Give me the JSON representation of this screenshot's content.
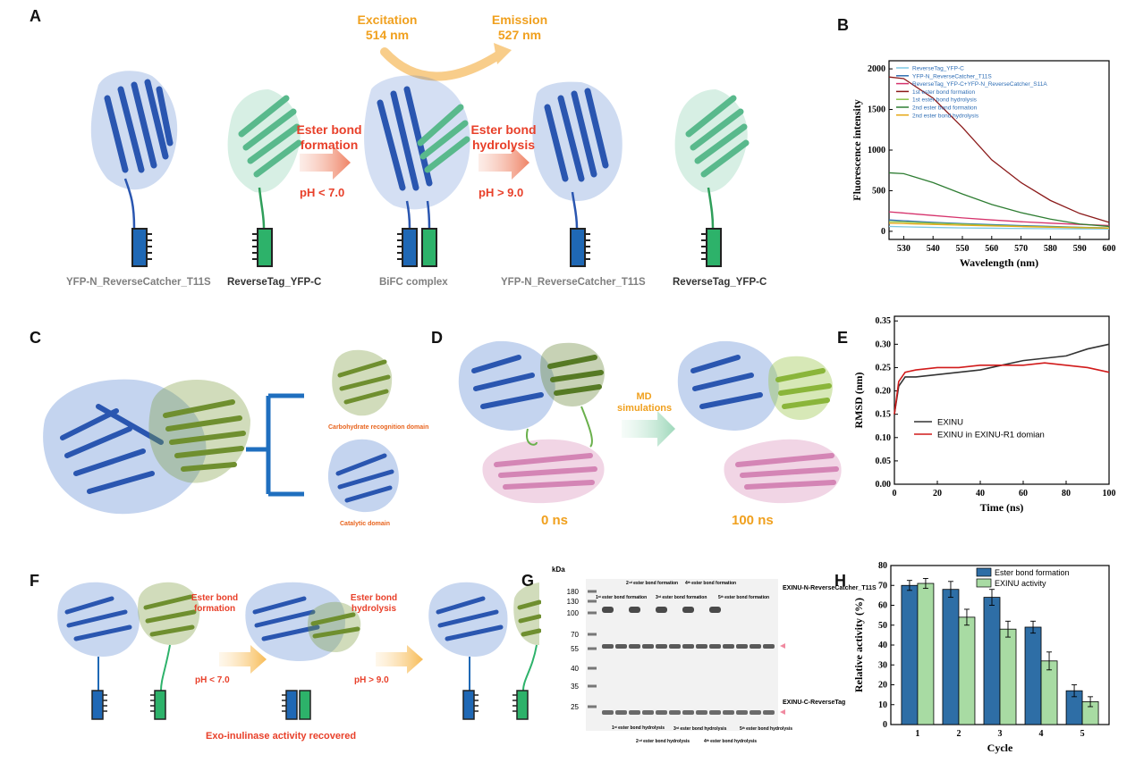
{
  "panels": {
    "A": {
      "label": "A",
      "excitation": [
        "Excitation",
        "514 nm"
      ],
      "emission": [
        "Emission",
        "527 nm"
      ],
      "step1": [
        "Ester bond",
        "formation"
      ],
      "step1_ph": "pH < 7.0",
      "step2": [
        "Ester bond",
        "hydrolysis"
      ],
      "step2_ph": "pH > 9.0",
      "captions": [
        "YFP-N_ReverseCatcher_T11S",
        "ReverseTag_YFP-C",
        "BiFC complex",
        "YFP-N_ReverseCatcher_T11S",
        "ReverseTag_YFP-C"
      ]
    },
    "B": {
      "label": "B"
    },
    "C": {
      "label": "C",
      "domain1": "Carbohydrate recognition domain",
      "domain2": "Catalytic domain"
    },
    "D": {
      "label": "D",
      "md": [
        "MD",
        "simulations"
      ],
      "t0": "0 ns",
      "t1": "100 ns"
    },
    "E": {
      "label": "E"
    },
    "F": {
      "label": "F",
      "step1": [
        "Ester bond",
        "formation"
      ],
      "step1_ph": "pH < 7.0",
      "step2": [
        "Ester bond",
        "hydrolysis"
      ],
      "step2_ph": "pH > 9.0",
      "caption": "Exo-inulinase activity recovered"
    },
    "G": {
      "label": "G",
      "kda": "kDa",
      "markers": [
        "180",
        "130",
        "100",
        "70",
        "55",
        "40",
        "35",
        "25"
      ],
      "band_upper": "EXINU-N-ReverseCatcher_T11S",
      "band_lower": "EXINU-C-ReverseTag",
      "top_labels": [
        "1ˢᵗ ester bond formation",
        "2ⁿᵈ ester bond formation",
        "3ʳᵈ ester bond formation",
        "4ᵗʰ ester bond formation",
        "5ᵗʰ ester bond formation"
      ],
      "bottom_labels": [
        "1ˢᵗ ester bond hydrolysis",
        "2ⁿᵈ ester bond hydrolysis",
        "3ʳᵈ ester bond hydrolysis",
        "4ᵗʰ ester bond hydrolysis",
        "5ᵗʰ ester bond hydrolysis"
      ]
    },
    "H": {
      "label": "H"
    }
  },
  "chart_data": [
    {
      "id": "B",
      "type": "line",
      "xlabel": "Wavelength (nm)",
      "ylabel": "Fluorescence intensity",
      "xlim": [
        525,
        600
      ],
      "ylim": [
        -100,
        2100
      ],
      "xticks": [
        530,
        540,
        550,
        560,
        570,
        580,
        590,
        600
      ],
      "yticks": [
        0,
        500,
        1000,
        1500,
        2000
      ],
      "legend": "top-left",
      "x": [
        525,
        530,
        540,
        550,
        560,
        570,
        580,
        590,
        600
      ],
      "series": [
        {
          "name": "ReverseTag_YFP-C",
          "color": "#7ec8e3",
          "values": [
            60,
            55,
            48,
            42,
            38,
            35,
            32,
            30,
            28
          ]
        },
        {
          "name": "YFP-N_ReverseCatcher_T11S",
          "color": "#2e6fb0",
          "values": [
            140,
            130,
            110,
            95,
            82,
            70,
            60,
            50,
            42
          ]
        },
        {
          "name": "ReverseTag_YFP-C+YFP-N_ReverseCatcher_S11A",
          "color": "#d6336c",
          "values": [
            240,
            225,
            195,
            165,
            140,
            118,
            100,
            85,
            72
          ]
        },
        {
          "name": "1st ester bond formation",
          "color": "#8b1a1a",
          "values": [
            1900,
            1880,
            1640,
            1280,
            880,
            600,
            380,
            220,
            110
          ]
        },
        {
          "name": "1st ester bond hydrolysis",
          "color": "#8bc34a",
          "values": [
            120,
            115,
            100,
            88,
            75,
            64,
            55,
            48,
            42
          ]
        },
        {
          "name": "2nd ester bond formation",
          "color": "#2e7d32",
          "values": [
            720,
            710,
            600,
            460,
            330,
            230,
            150,
            90,
            60
          ]
        },
        {
          "name": "2nd ester bond hydrolysis",
          "color": "#e6a817",
          "values": [
            100,
            95,
            85,
            75,
            66,
            58,
            50,
            44,
            38
          ]
        }
      ]
    },
    {
      "id": "E",
      "type": "line",
      "xlabel": "Time (ns)",
      "ylabel": "RMSD (nm)",
      "xlim": [
        0,
        100
      ],
      "ylim": [
        0,
        0.36
      ],
      "xticks": [
        0,
        20,
        40,
        60,
        80,
        100
      ],
      "yticks": [
        0.0,
        0.05,
        0.1,
        0.15,
        0.2,
        0.25,
        0.3,
        0.35
      ],
      "legend": "center",
      "x": [
        0,
        2,
        5,
        10,
        20,
        30,
        40,
        50,
        60,
        70,
        80,
        90,
        100
      ],
      "series": [
        {
          "name": "EXINU",
          "color": "#333333",
          "values": [
            0.15,
            0.21,
            0.23,
            0.23,
            0.235,
            0.24,
            0.245,
            0.255,
            0.265,
            0.27,
            0.275,
            0.29,
            0.3
          ]
        },
        {
          "name": "EXINU in EXINU-R1 domian",
          "color": "#d11a1a",
          "values": [
            0.15,
            0.22,
            0.24,
            0.245,
            0.25,
            0.25,
            0.255,
            0.255,
            0.255,
            0.26,
            0.255,
            0.25,
            0.24
          ]
        }
      ]
    },
    {
      "id": "H",
      "type": "bar",
      "xlabel": "Cycle",
      "ylabel": "Relative activity (%)",
      "categories": [
        "1",
        "2",
        "3",
        "4",
        "5"
      ],
      "ylim": [
        0,
        80
      ],
      "yticks": [
        0,
        10,
        20,
        30,
        40,
        50,
        60,
        70,
        80
      ],
      "legend": "top-right",
      "series": [
        {
          "name": "Ester bond formation",
          "color": "#2e6ea6",
          "values": [
            70,
            68,
            64,
            49,
            17
          ],
          "errors": [
            2.5,
            4,
            4,
            3,
            3
          ]
        },
        {
          "name": "EXINU activity",
          "color": "#a8dba3",
          "values": [
            71,
            54,
            48,
            32,
            11.5
          ],
          "errors": [
            2.5,
            4,
            4,
            4.5,
            2.5
          ]
        }
      ]
    }
  ]
}
